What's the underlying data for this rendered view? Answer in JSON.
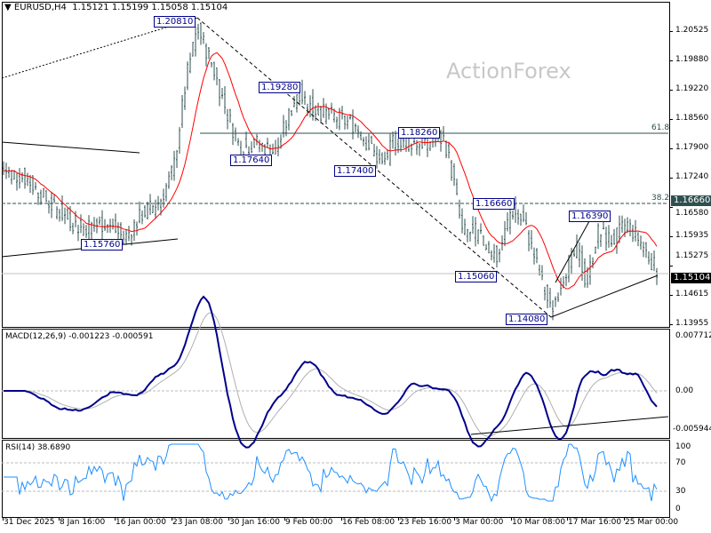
{
  "header": {
    "symbol": "EURUSD,H4",
    "open": "1.15121",
    "high": "1.15199",
    "low": "1.15058",
    "close": "1.15104"
  },
  "watermark": "ActionForex",
  "price_axis": [
    "1.20525",
    "1.19880",
    "1.19220",
    "1.18560",
    "1.17900",
    "1.17240",
    "1.16580",
    "1.15935",
    "1.15275",
    "1.14615",
    "1.13955"
  ],
  "current_price": "1.15104",
  "level_price": "1.16660",
  "fib": {
    "f618": "61.8",
    "f382": "38.2"
  },
  "annotations": [
    "1.20810",
    "1.19280",
    "1.17640",
    "1.18260",
    "1.17400",
    "1.15760",
    "1.16660",
    "1.16390",
    "1.15060",
    "1.14080"
  ],
  "macd": {
    "title": "MACD(12,26,9) -0.001223 -0.000591",
    "axis": [
      "0.007712",
      "0.00",
      "-0.005944"
    ]
  },
  "rsi": {
    "title": "RSI(14) 38.6890",
    "axis": [
      "100",
      "70",
      "30",
      "0"
    ]
  },
  "time_axis": [
    "31 Dec 2025",
    "8 Jan 16:00",
    "16 Jan 00:00",
    "23 Jan 08:00",
    "30 Jan 16:00",
    "9 Feb 00:00",
    "16 Feb 08:00",
    "23 Feb 16:00",
    "3 Mar 00:00",
    "10 Mar 08:00",
    "17 Mar 16:00",
    "25 Mar 00:00"
  ],
  "colors": {
    "candle": "#2f4f4f",
    "ma": "#ff0000",
    "macd": "#00008b",
    "signal": "#b0b0b0",
    "rsi": "#1e90ff"
  }
}
